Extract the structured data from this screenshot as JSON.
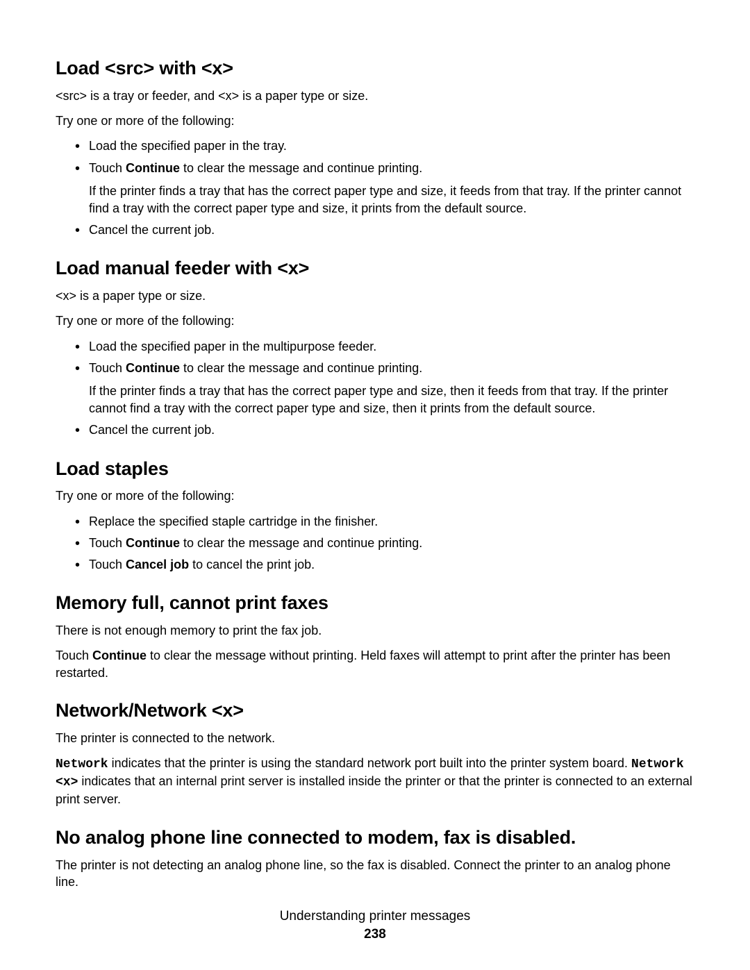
{
  "sections": {
    "s1": {
      "heading": "Load <src> with <x>",
      "p1": "<src> is a tray or feeder, and <x> is a paper type or size.",
      "p2": "Try one or more of the following:",
      "li1": "Load the specified paper in the tray.",
      "li2_pre": "Touch ",
      "li2_bold": "Continue",
      "li2_post": " to clear the message and continue printing.",
      "li2_sub": "If the printer finds a tray that has the correct paper type and size, it feeds from that tray. If the printer cannot find a tray with the correct paper type and size, it prints from the default source.",
      "li3": "Cancel the current job."
    },
    "s2": {
      "heading": "Load manual feeder with <x>",
      "p1": "<x> is a paper type or size.",
      "p2": "Try one or more of the following:",
      "li1": "Load the specified paper in the multipurpose feeder.",
      "li2_pre": "Touch ",
      "li2_bold": "Continue",
      "li2_post": " to clear the message and continue printing.",
      "li2_sub": "If the printer finds a tray that has the correct paper type and size, then it feeds from that tray. If the printer cannot find a tray with the correct paper type and size, then it prints from the default source.",
      "li3": "Cancel the current job."
    },
    "s3": {
      "heading": "Load staples",
      "p1": "Try one or more of the following:",
      "li1": "Replace the specified staple cartridge in the finisher.",
      "li2_pre": "Touch ",
      "li2_bold": "Continue",
      "li2_post": " to clear the message and continue printing.",
      "li3_pre": "Touch ",
      "li3_bold": "Cancel job",
      "li3_post": " to cancel the print job."
    },
    "s4": {
      "heading": "Memory full, cannot print faxes",
      "p1": "There is not enough memory to print the fax job.",
      "p2_pre": "Touch ",
      "p2_bold": "Continue",
      "p2_post": " to clear the message without printing. Held faxes will attempt to print after the printer has been restarted."
    },
    "s5": {
      "heading": "Network/Network <x>",
      "p1": "The printer is connected to the network.",
      "p2_mono1": "Network",
      "p2_mid1": " indicates that the printer is using the standard network port built into the printer system board. ",
      "p2_mono2": "Network <x>",
      "p2_mid2": " indicates that an internal print server is installed inside the printer or that the printer is connected to an external print server."
    },
    "s6": {
      "heading": "No analog phone line connected to modem, fax is disabled.",
      "p1": "The printer is not detecting an analog phone line, so the fax is disabled. Connect the printer to an analog phone line."
    }
  },
  "footer": {
    "title": "Understanding printer messages",
    "page": "238"
  }
}
